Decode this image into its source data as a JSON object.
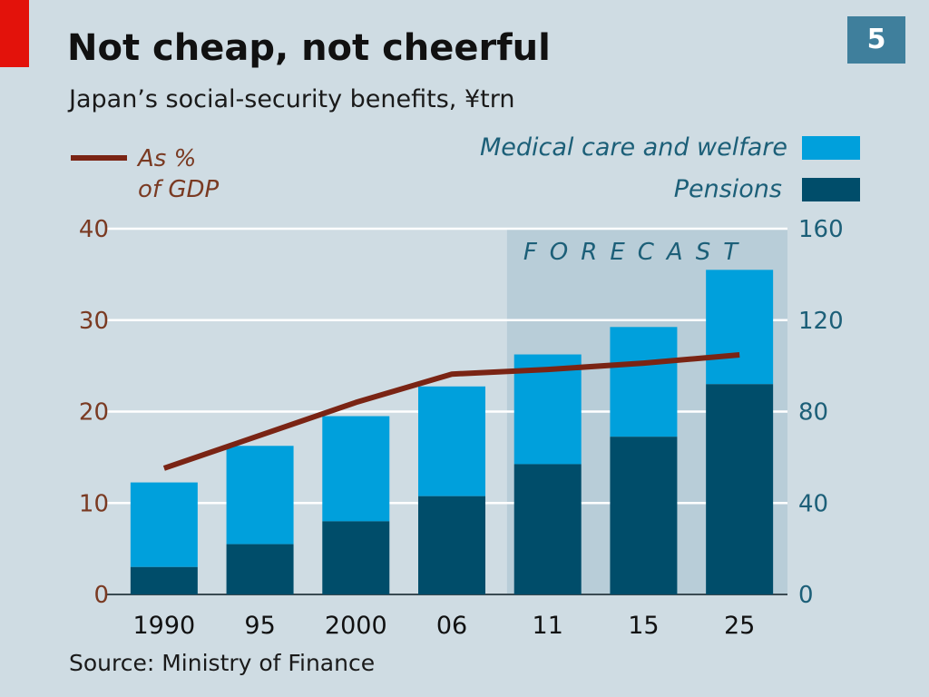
{
  "header": {
    "title": "Not cheap, not cheerful",
    "subtitle": "Japan’s social-security benefits, ¥trn",
    "badge": "5"
  },
  "footer": {
    "source": "Source: Ministry of Finance"
  },
  "colors": {
    "background": "#cfdce3",
    "medical": "#00a0dc",
    "pensions": "#004d6a",
    "line": "#7a2414",
    "forecast_band": "#b8cdd8",
    "accent_red": "#e3120b"
  },
  "chart_data": {
    "type": "bar",
    "stacked": true,
    "categories": [
      "1990",
      "95",
      "2000",
      "06",
      "11",
      "15",
      "25"
    ],
    "series": [
      {
        "name": "Pensions",
        "axis": "right",
        "color": "#004d6a",
        "values": [
          12,
          22,
          32,
          43,
          57,
          69,
          92
        ]
      },
      {
        "name": "Medical care and welfare",
        "axis": "right",
        "color": "#00a0dc",
        "values": [
          37,
          43,
          46,
          48,
          48,
          48,
          50
        ]
      },
      {
        "name": "As % of GDP",
        "type": "line",
        "axis": "left",
        "color": "#7a2414",
        "values": [
          13.8,
          null,
          21.0,
          24.1,
          24.6,
          25.3,
          26.2
        ]
      }
    ],
    "left_axis": {
      "ticks": [
        "0",
        "10",
        "20",
        "30",
        "40"
      ],
      "ylim": [
        0,
        40
      ]
    },
    "right_axis": {
      "ticks": [
        "0",
        "40",
        "80",
        "120",
        "160"
      ],
      "ylim": [
        0,
        160
      ]
    },
    "forecast": {
      "label": "FORECAST",
      "start_category": "11"
    },
    "legend": {
      "line_label_1": "As %",
      "line_label_2": "of GDP",
      "medical_label": "Medical care and welfare",
      "pensions_label": "Pensions",
      "placement": "top"
    },
    "grid": true
  }
}
